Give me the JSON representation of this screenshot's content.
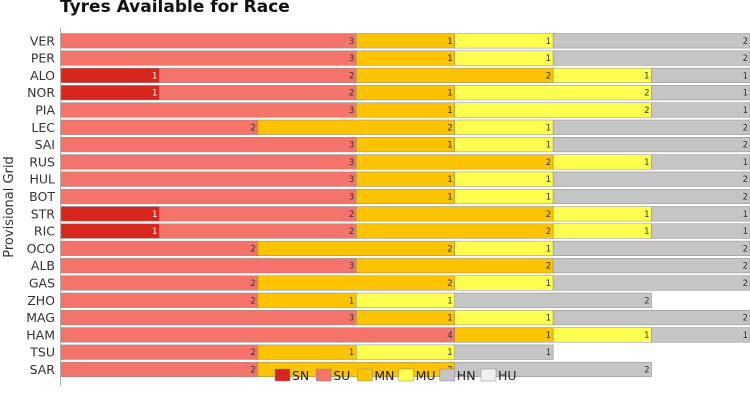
{
  "chart_data": {
    "type": "bar",
    "orientation": "horizontal",
    "stacked": true,
    "title": "Tyres Available for Race",
    "ylabel": "Provisional Grid",
    "categories": [
      "VER",
      "PER",
      "ALO",
      "NOR",
      "PIA",
      "LEC",
      "SAI",
      "RUS",
      "HUL",
      "BOT",
      "STR",
      "RIC",
      "OCO",
      "ALB",
      "GAS",
      "ZHO",
      "MAG",
      "HAM",
      "TSU",
      "SAR"
    ],
    "series": [
      {
        "name": "SN",
        "color": "#d7261e",
        "values": [
          0,
          0,
          1,
          1,
          0,
          0,
          0,
          0,
          0,
          0,
          1,
          1,
          0,
          0,
          0,
          0,
          0,
          0,
          0,
          0
        ]
      },
      {
        "name": "SU",
        "color": "#f4736a",
        "values": [
          3,
          3,
          2,
          2,
          3,
          2,
          3,
          3,
          3,
          3,
          2,
          2,
          2,
          3,
          2,
          2,
          3,
          4,
          2,
          2
        ]
      },
      {
        "name": "MN",
        "color": "#fcc300",
        "values": [
          1,
          1,
          2,
          1,
          1,
          2,
          1,
          2,
          1,
          1,
          2,
          2,
          2,
          2,
          2,
          1,
          1,
          1,
          1,
          2
        ]
      },
      {
        "name": "MU",
        "color": "#ffff4f",
        "values": [
          1,
          1,
          1,
          2,
          2,
          1,
          1,
          1,
          1,
          1,
          1,
          1,
          1,
          0,
          1,
          1,
          1,
          1,
          1,
          0
        ]
      },
      {
        "name": "HN",
        "color": "#c5c5c5",
        "values": [
          2,
          2,
          1,
          1,
          1,
          2,
          2,
          1,
          2,
          2,
          1,
          1,
          2,
          2,
          2,
          2,
          2,
          1,
          1,
          2
        ]
      },
      {
        "name": "HU",
        "color": "#f0f0f0",
        "values": [
          0,
          0,
          0,
          0,
          0,
          0,
          0,
          0,
          0,
          0,
          0,
          0,
          0,
          0,
          0,
          0,
          0,
          0,
          0,
          0
        ]
      }
    ],
    "xlim": [
      0,
      7
    ],
    "grid": false,
    "legend": "bottom"
  }
}
